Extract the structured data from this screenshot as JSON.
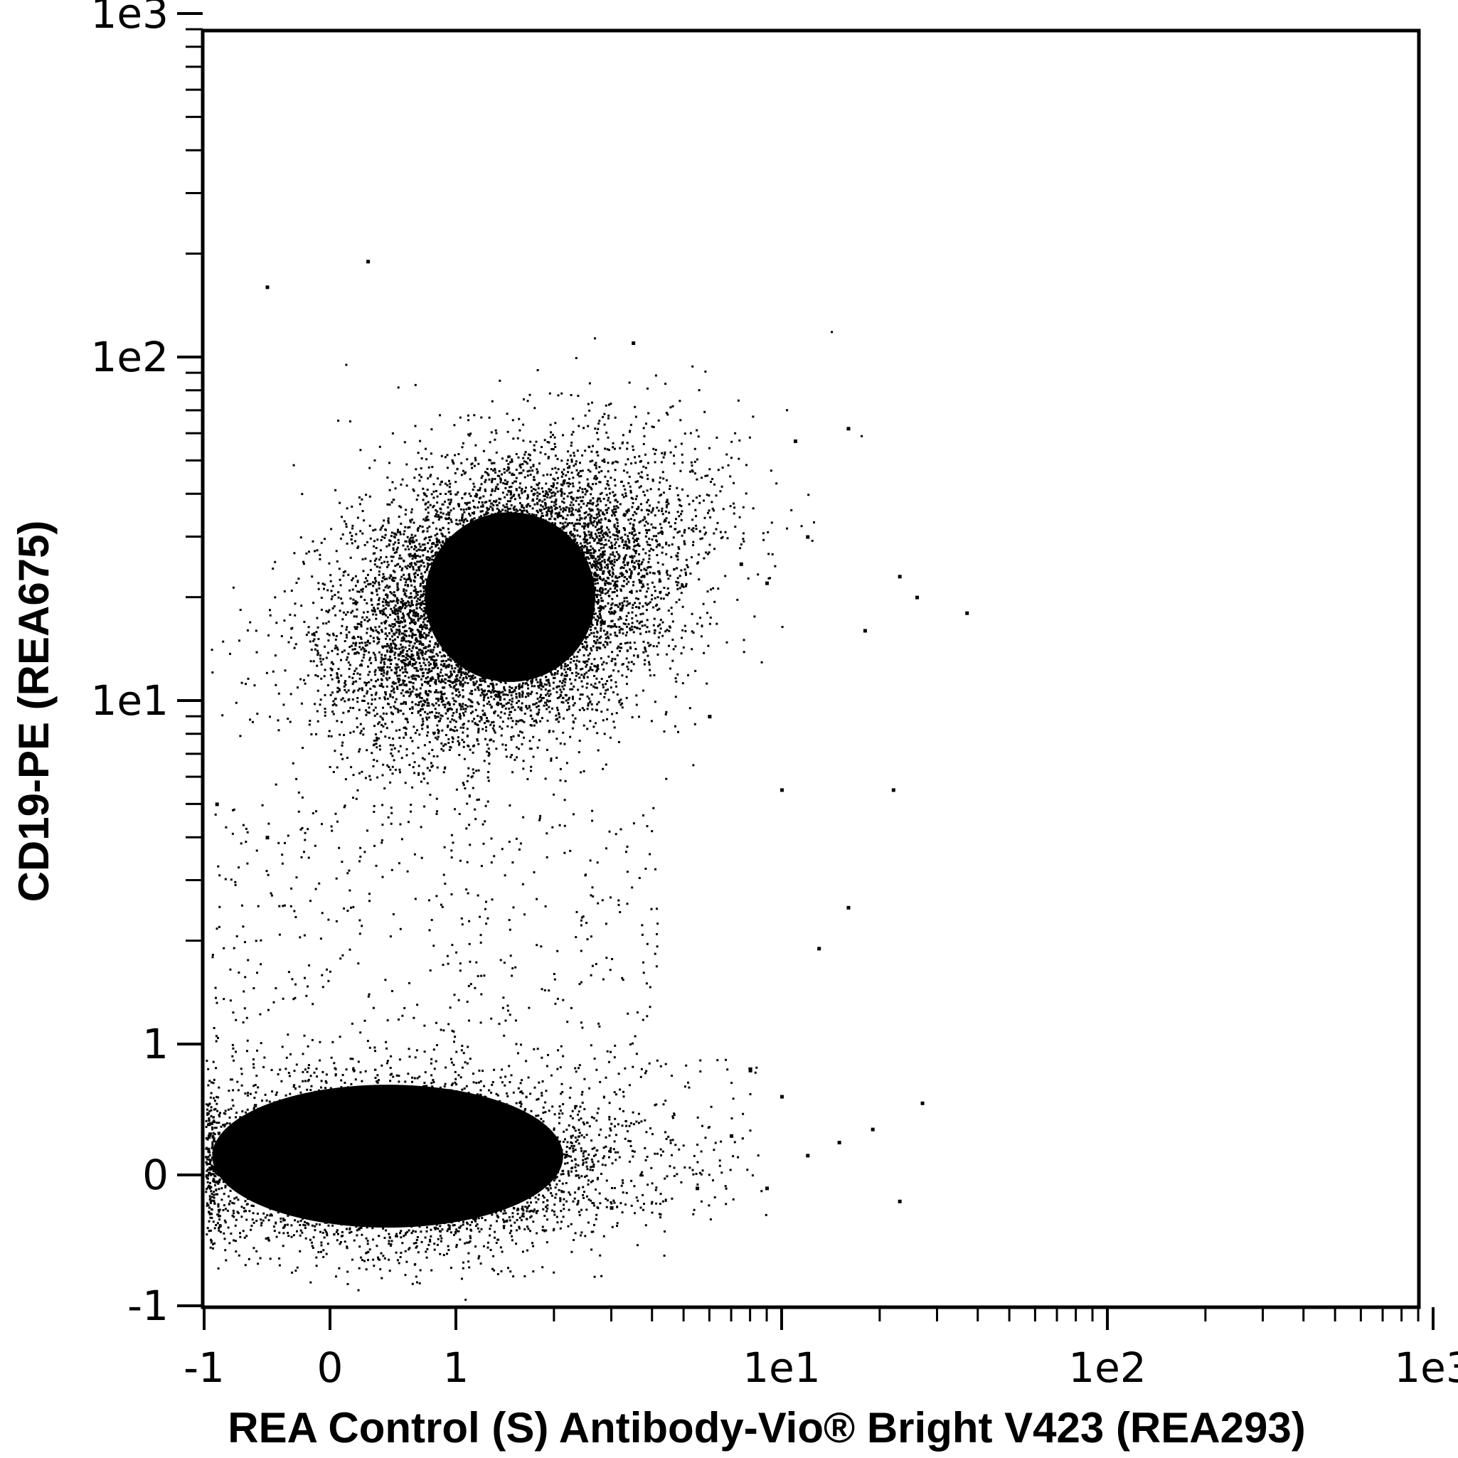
{
  "chart_data": {
    "type": "scatter",
    "title": "",
    "xlabel": "REA Control (S) Antibody-Vio® Bright V423 (REA293)",
    "ylabel": "CD19-PE (REA675)",
    "x_scale": "biexponential",
    "y_scale": "biexponential",
    "xlim": [
      -1,
      1000
    ],
    "ylim": [
      -1,
      1000
    ],
    "x_ticks": [
      {
        "value": -1,
        "label": "-1"
      },
      {
        "value": 0,
        "label": "0"
      },
      {
        "value": 1,
        "label": "1"
      },
      {
        "value": 10,
        "label": "1e1"
      },
      {
        "value": 100,
        "label": "1e2"
      },
      {
        "value": 1000,
        "label": "1e3"
      }
    ],
    "y_ticks": [
      {
        "value": -1,
        "label": "-1"
      },
      {
        "value": 0,
        "label": "0"
      },
      {
        "value": 1,
        "label": "1"
      },
      {
        "value": 10,
        "label": "1e1"
      },
      {
        "value": 100,
        "label": "1e2"
      },
      {
        "value": 1000,
        "label": "1e3"
      }
    ],
    "grid": false,
    "legend": "none",
    "marker_color": "#000000",
    "populations": [
      {
        "description": "dense cluster near origin",
        "x_range": [
          -1,
          2.5
        ],
        "y_range": [
          -0.6,
          0.8
        ],
        "center": [
          0.4,
          0.1
        ]
      },
      {
        "description": "dense cluster upper left",
        "x_range": [
          -1,
          4
        ],
        "y_range": [
          6,
          90
        ],
        "center": [
          1.2,
          20
        ]
      }
    ],
    "points": [
      [
        -0.5,
        160
      ],
      [
        0.3,
        190
      ],
      [
        3.5,
        110
      ],
      [
        16,
        62
      ],
      [
        11,
        57
      ],
      [
        23,
        23
      ],
      [
        37,
        18
      ],
      [
        18,
        16
      ],
      [
        26,
        20
      ],
      [
        7.5,
        25
      ],
      [
        9,
        22
      ],
      [
        12,
        30
      ],
      [
        6,
        9
      ],
      [
        10,
        5.5
      ],
      [
        22,
        5.5
      ],
      [
        16,
        2.5
      ],
      [
        13,
        1.9
      ],
      [
        8,
        0.8
      ],
      [
        10,
        0.6
      ],
      [
        27,
        0.55
      ],
      [
        19,
        0.35
      ],
      [
        15,
        0.25
      ],
      [
        23,
        -0.2
      ],
      [
        12,
        0.15
      ],
      [
        9,
        -0.1
      ],
      [
        7,
        0.3
      ],
      [
        5.5,
        -0.1
      ],
      [
        3,
        -0.25
      ],
      [
        -0.9,
        5
      ],
      [
        -0.5,
        4
      ]
    ]
  }
}
